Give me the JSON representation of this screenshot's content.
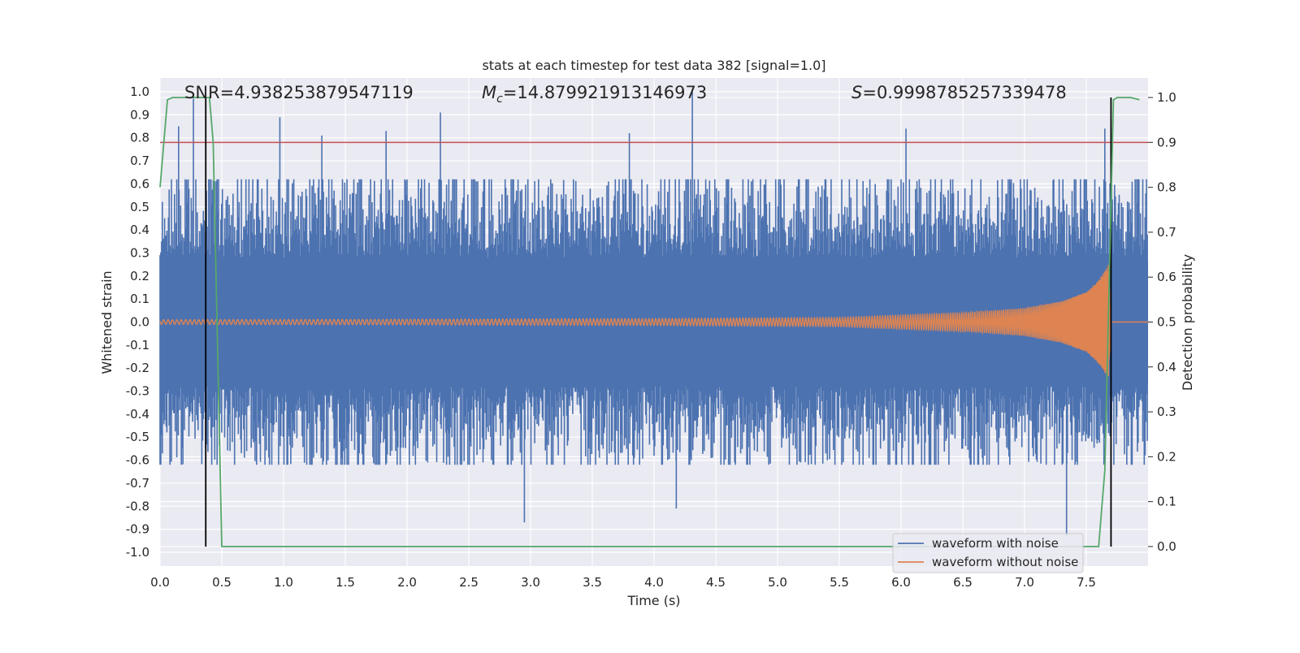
{
  "chart_data": {
    "type": "line",
    "title": "stats at each timestep for test data 382 [signal=1.0]",
    "xlabel": "Time (s)",
    "ylabel": "Whitened strain",
    "y2label": "Detection probability",
    "xlim": [
      0.0,
      8.0
    ],
    "ylim": [
      -1.06,
      1.06
    ],
    "y2lim": [
      -0.0435,
      1.0435
    ],
    "xticks": [
      "0.0",
      "0.5",
      "1.0",
      "1.5",
      "2.0",
      "2.5",
      "3.0",
      "3.5",
      "4.0",
      "4.5",
      "5.0",
      "5.5",
      "6.0",
      "6.5",
      "7.0",
      "7.5"
    ],
    "yticks": [
      "1.0",
      "0.9",
      "0.8",
      "0.7",
      "0.6",
      "0.5",
      "0.4",
      "0.3",
      "0.2",
      "0.1",
      "0.0",
      "-0.1",
      "-0.2",
      "-0.3",
      "-0.4",
      "-0.5",
      "-0.6",
      "-0.7",
      "-0.8",
      "-0.9",
      "-1.0"
    ],
    "y2ticks": [
      "1.0",
      "0.9",
      "0.8",
      "0.7",
      "0.6",
      "0.5",
      "0.4",
      "0.3",
      "0.2",
      "0.1",
      "0.0"
    ],
    "grid": true,
    "legend_position": "lower-right",
    "annotations": {
      "snr": "SNR=4.938253879547119",
      "mc_symbol": "M",
      "mc_sub": "c",
      "mc_value": "=14.879921913146973",
      "s_symbol": "S",
      "s_value": "=0.9998785257339478"
    },
    "series": [
      {
        "name": "waveform with noise",
        "color": "#4c72b0",
        "description_values": "noise band approx ±0.4 with peaks up to 1.0 and down to -0.93",
        "envelope_peaks": [
          [
            0.15,
            0.85
          ],
          [
            0.27,
            0.97
          ],
          [
            0.97,
            0.89
          ],
          [
            1.31,
            0.81
          ],
          [
            1.83,
            0.83
          ],
          [
            2.27,
            0.91
          ],
          [
            3.8,
            0.82
          ],
          [
            4.31,
            1.0
          ],
          [
            6.04,
            0.84
          ],
          [
            7.34,
            -0.93
          ],
          [
            2.95,
            -0.87
          ],
          [
            4.18,
            -0.81
          ],
          [
            7.65,
            0.84
          ]
        ]
      },
      {
        "name": "waveform without noise",
        "color": "#dd8452",
        "chirp_amplitude": [
          [
            0.0,
            0.01
          ],
          [
            2.0,
            0.012
          ],
          [
            4.0,
            0.015
          ],
          [
            5.5,
            0.02
          ],
          [
            6.5,
            0.04
          ],
          [
            7.0,
            0.06
          ],
          [
            7.3,
            0.09
          ],
          [
            7.5,
            0.13
          ],
          [
            7.6,
            0.18
          ],
          [
            7.68,
            0.25
          ],
          [
            7.7,
            0.0
          ]
        ]
      },
      {
        "name": "detection probability",
        "axis": "right",
        "color": "#55a868",
        "x": [
          0.0,
          0.06,
          0.1,
          0.4,
          0.43,
          0.5,
          7.6,
          7.65,
          7.72,
          7.75,
          7.86,
          7.93
        ],
        "y": [
          0.8,
          0.995,
          1.0,
          1.0,
          0.9,
          0.0,
          0.0,
          0.17,
          0.995,
          1.0,
          1.0,
          0.995
        ]
      }
    ],
    "threshold_line": {
      "y2": 0.9,
      "color": "#c44e52"
    },
    "vertical_lines": {
      "x": [
        0.37,
        7.7
      ],
      "color": "#000000"
    }
  }
}
